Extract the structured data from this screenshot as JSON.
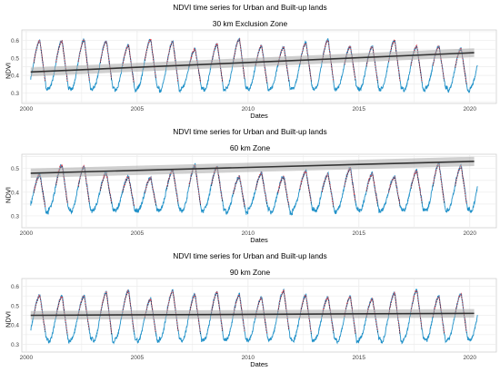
{
  "chart_data": [
    {
      "type": "line",
      "title": "NDVI time series for Urban and Built-up lands",
      "subtitle": "30 km Exclusion Zone",
      "xlabel": "Dates",
      "ylabel": "NDVI",
      "xlim": [
        1999.8,
        2021.2
      ],
      "ylim": [
        0.24,
        0.66
      ],
      "x_ticks": [
        2000,
        2005,
        2010,
        2015,
        2020
      ],
      "y_ticks": [
        0.3,
        0.4,
        0.5,
        0.6
      ],
      "grid": true,
      "legend": "none",
      "colors": {
        "observed": "#1e90c8",
        "fitted": "#e8424c",
        "smoothed": "#1e1e3c",
        "trend": "#333333",
        "ci_band": "#aaaaaa"
      },
      "seasonal": {
        "peak": 0.61,
        "trough": 0.31,
        "peak_phase": 0.62,
        "trough_phase": 0.02
      },
      "trend": {
        "x": [
          2000.2,
          2020.2
        ],
        "y": [
          0.42,
          0.53
        ],
        "ci_halfwidth": 0.018
      }
    },
    {
      "type": "line",
      "title": "NDVI time series for Urban and Built-up lands",
      "subtitle": "60 km Zone",
      "xlabel": "Dates",
      "ylabel": "NDVI",
      "xlim": [
        1999.8,
        2021.2
      ],
      "ylim": [
        0.25,
        0.56
      ],
      "x_ticks": [
        2000,
        2005,
        2010,
        2015,
        2020
      ],
      "y_ticks": [
        0.3,
        0.4,
        0.5
      ],
      "grid": true,
      "legend": "none",
      "colors": {
        "observed": "#1e90c8",
        "fitted": "#e8424c",
        "smoothed": "#1e1e3c",
        "trend": "#333333",
        "ci_band": "#aaaaaa"
      },
      "seasonal": {
        "peak": 0.52,
        "trough": 0.31,
        "peak_phase": 0.62,
        "trough_phase": 0.02
      },
      "trend": {
        "x": [
          2000.2,
          2020.2
        ],
        "y": [
          0.48,
          0.53
        ],
        "ci_halfwidth": 0.014
      }
    },
    {
      "type": "line",
      "title": "NDVI time series for Urban and Built-up lands",
      "subtitle": "90 km Zone",
      "xlabel": "Dates",
      "ylabel": "NDVI",
      "xlim": [
        1999.8,
        2021.2
      ],
      "ylim": [
        0.26,
        0.64
      ],
      "x_ticks": [
        2000,
        2005,
        2010,
        2015,
        2020
      ],
      "y_ticks": [
        0.3,
        0.4,
        0.5,
        0.6
      ],
      "grid": true,
      "legend": "none",
      "colors": {
        "observed": "#1e90c8",
        "fitted": "#e8424c",
        "smoothed": "#1e1e3c",
        "trend": "#333333",
        "ci_band": "#aaaaaa"
      },
      "seasonal": {
        "peak": 0.59,
        "trough": 0.31,
        "peak_phase": 0.62,
        "trough_phase": 0.02
      },
      "trend": {
        "x": [
          2000.2,
          2020.2
        ],
        "y": [
          0.45,
          0.46
        ],
        "ci_halfwidth": 0.016
      }
    }
  ]
}
